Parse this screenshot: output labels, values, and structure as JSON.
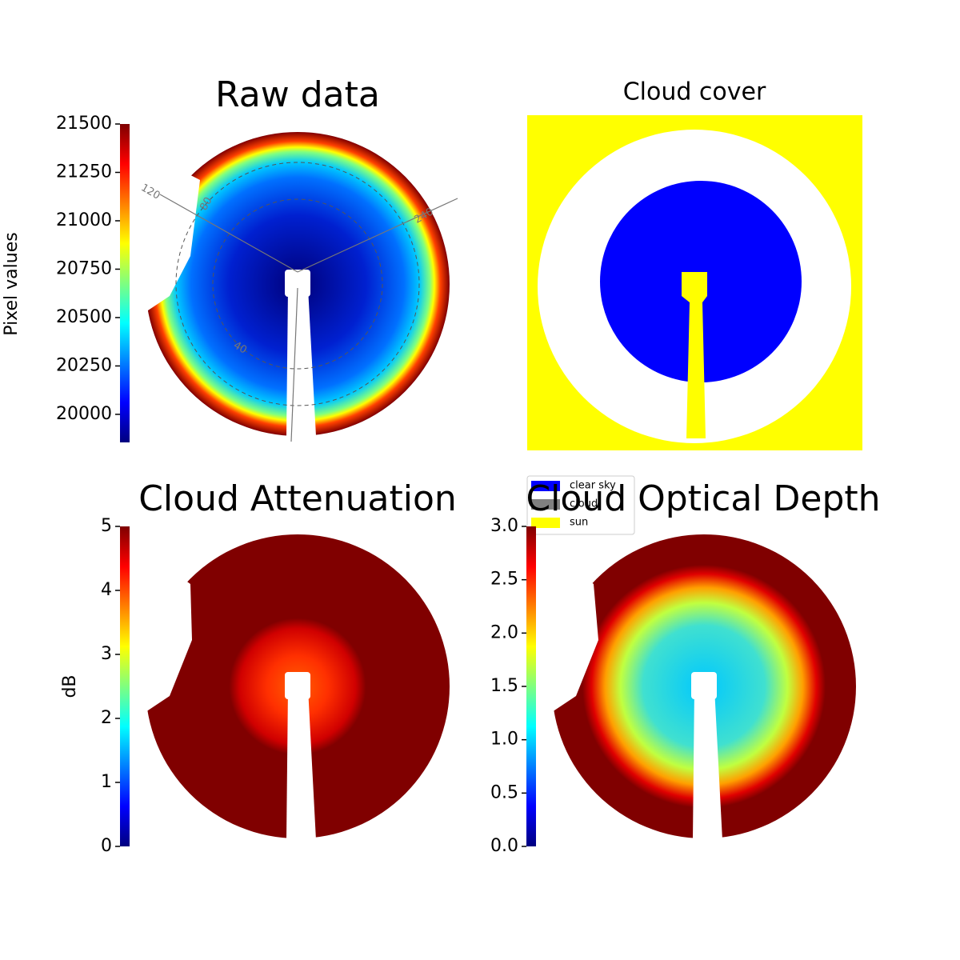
{
  "chart_data": [
    {
      "type": "image",
      "title": "Raw data",
      "colorbar_label": "Pixel values",
      "colormap": "jet",
      "ylim": [
        19855,
        21500
      ],
      "yticks": [
        20000,
        20250,
        20500,
        20750,
        21000,
        21250,
        21500
      ],
      "annotations": [
        "120",
        "240",
        "80",
        "40"
      ]
    },
    {
      "type": "classification",
      "title": "Cloud cover",
      "categories": [
        "clear sky",
        "cloud",
        "sun"
      ],
      "colors": [
        "#0000ff",
        "#808080",
        "#ffff00"
      ]
    },
    {
      "type": "image",
      "title": "Cloud Attenuation",
      "colorbar_label": "dB",
      "colormap": "jet",
      "ylim": [
        0,
        5
      ],
      "yticks": [
        0,
        1,
        2,
        3,
        4,
        5
      ]
    },
    {
      "type": "image",
      "title": "Cloud Optical Depth",
      "colormap": "jet",
      "ylim": [
        0,
        3
      ],
      "yticks": [
        {
          "value": 0,
          "label": "0.0"
        },
        0.5,
        {
          "value": 1,
          "label": "1.0"
        },
        1.5,
        {
          "value": 2,
          "label": "2.0"
        },
        2.5,
        {
          "value": 3,
          "label": "3.0"
        }
      ]
    }
  ]
}
